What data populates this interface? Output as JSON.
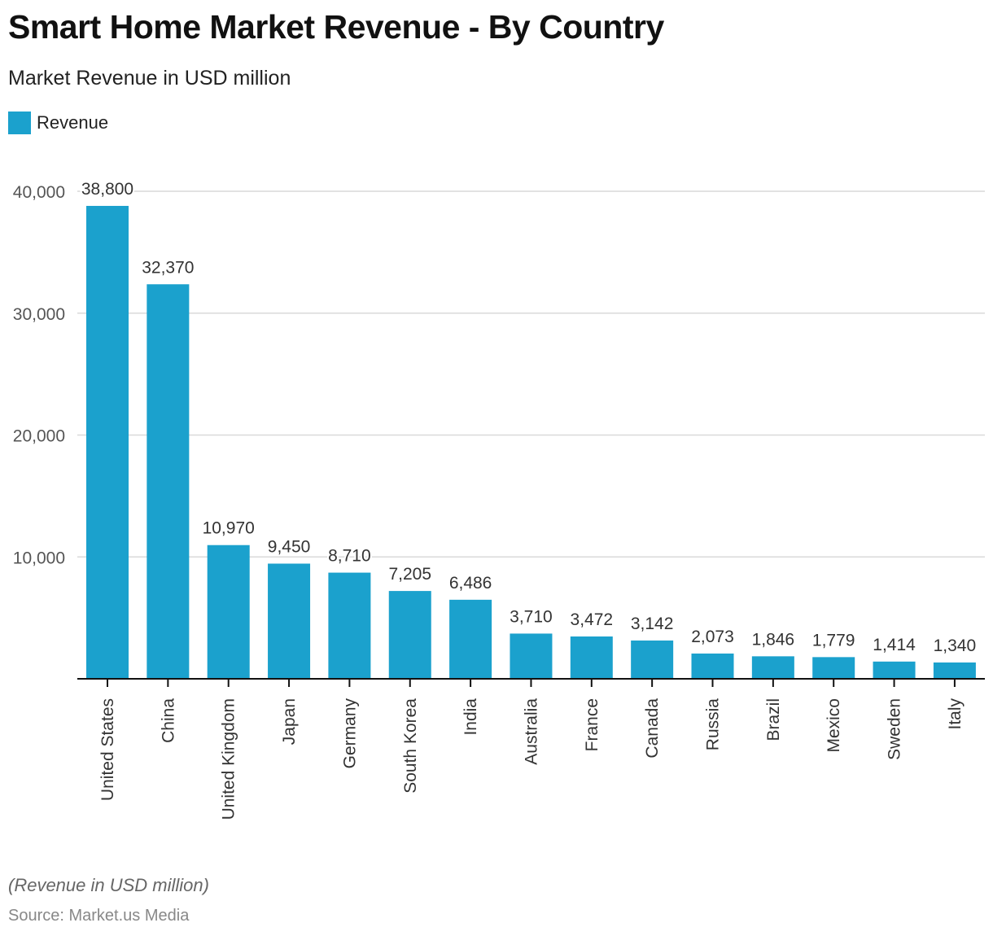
{
  "header": {
    "title": "Smart Home Market Revenue - By Country",
    "subtitle": "Market Revenue in USD million"
  },
  "legend": {
    "items": [
      {
        "label": "Revenue",
        "color": "#1ba1cd"
      }
    ]
  },
  "footer": {
    "note": "(Revenue in USD million)",
    "source": "Source: Market.us Media"
  },
  "chart_data": {
    "type": "bar",
    "title": "Smart Home Market Revenue - By Country",
    "subtitle": "Market Revenue in USD million",
    "xlabel": "",
    "ylabel": "",
    "ylim": [
      0,
      40000
    ],
    "yticks": [
      10000,
      20000,
      30000,
      40000
    ],
    "ytick_labels": [
      "10,000",
      "20,000",
      "30,000",
      "40,000"
    ],
    "grid": true,
    "legend_position": "top-left",
    "categories": [
      "United States",
      "China",
      "United Kingdom",
      "Japan",
      "Germany",
      "South Korea",
      "India",
      "Australia",
      "France",
      "Canada",
      "Russia",
      "Brazil",
      "Mexico",
      "Sweden",
      "Italy"
    ],
    "series": [
      {
        "name": "Revenue",
        "color": "#1ba1cd",
        "values": [
          38800,
          32370,
          10970,
          9450,
          8710,
          7205,
          6486,
          3710,
          3472,
          3142,
          2073,
          1846,
          1779,
          1414,
          1340
        ],
        "data_labels": [
          "38,800",
          "32,370",
          "10,970",
          "9,450",
          "8,710",
          "7,205",
          "6,486",
          "3,710",
          "3,472",
          "3,142",
          "2,073",
          "1,846",
          "1,779",
          "1,414",
          "1,340"
        ]
      }
    ]
  }
}
